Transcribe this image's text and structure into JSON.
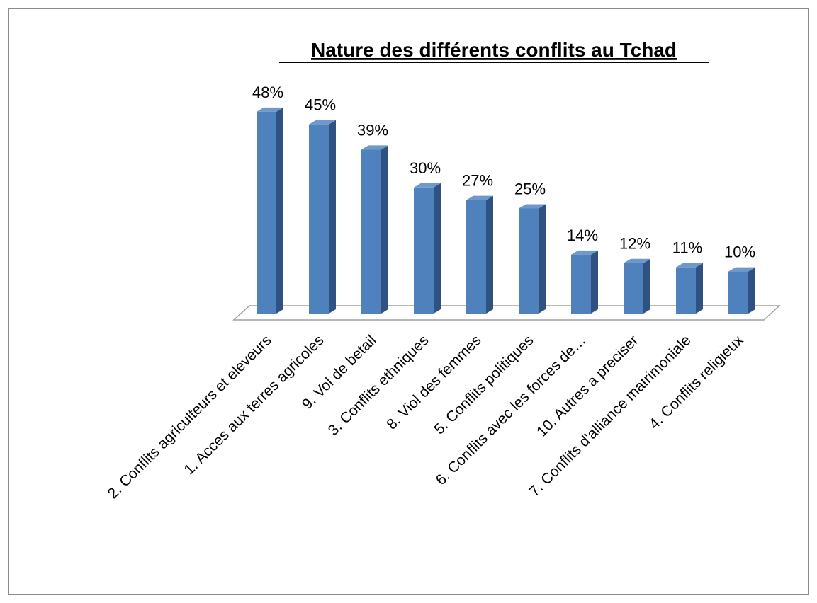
{
  "chart_data": {
    "type": "bar",
    "title": "Nature des différents conflits au Tchad",
    "categories": [
      "2. Conflits agriculteurs et eleveurs",
      "1. Acces aux terres agricoles",
      "9. Vol de betail",
      "3. Conflits ethniques",
      "8. Viol des femmes",
      "5. Conflits politiques",
      "6. Conflits avec les forces de…",
      "10. Autres a preciser",
      "7. Conflits d'alliance matrimoniale",
      "4. Conflits religieux"
    ],
    "values": [
      48,
      45,
      39,
      30,
      27,
      25,
      14,
      12,
      11,
      10
    ],
    "value_labels": [
      "48%",
      "45%",
      "39%",
      "30%",
      "27%",
      "25%",
      "14%",
      "12%",
      "11%",
      "10%"
    ],
    "color": "#4f81bd"
  }
}
